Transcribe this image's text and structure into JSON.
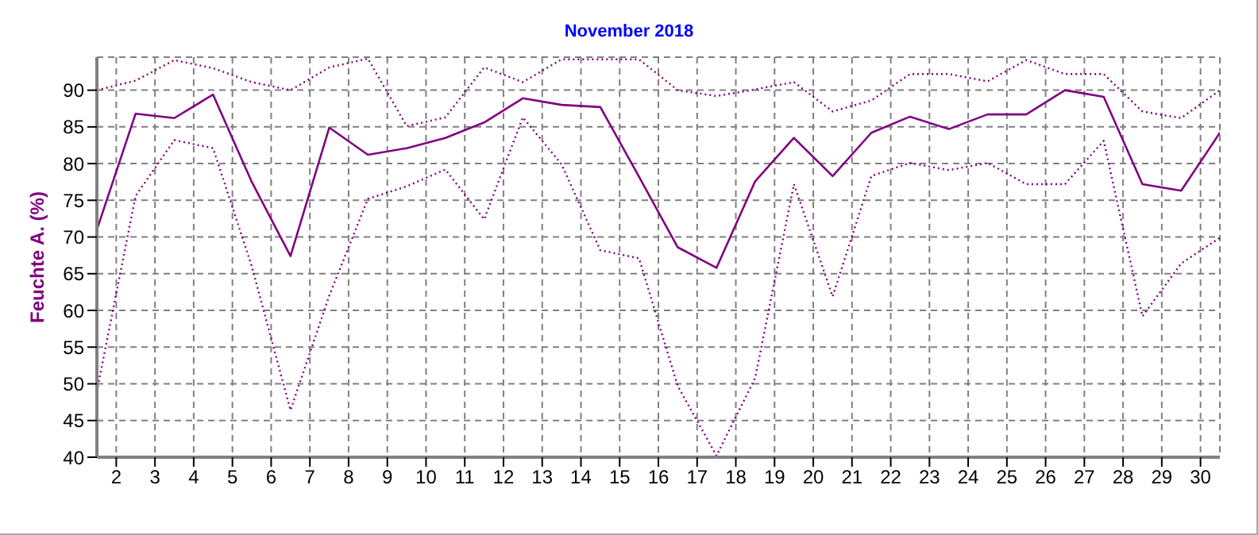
{
  "chart_data": {
    "type": "line",
    "title": "November 2018",
    "ylabel": "Feuchte A. (%)",
    "x": [
      1.5,
      2.5,
      3.5,
      4.5,
      5.5,
      6.5,
      7.5,
      8.5,
      9.5,
      10.5,
      11.5,
      12.5,
      13.5,
      14.5,
      15.5,
      16.5,
      17.5,
      18.5,
      19.5,
      20.5,
      21.5,
      22.5,
      23.5,
      24.5,
      25.5,
      26.5,
      27.5,
      28.5,
      29.5,
      30.5
    ],
    "series": [
      {
        "color": "#800080",
        "line_style": "solid",
        "values": [
          71,
          86.8,
          86.2,
          89.4,
          77.5,
          67.4,
          84.9,
          81.2,
          82.1,
          83.5,
          85.6,
          88.9,
          88,
          87.7,
          78.2,
          68.6,
          65.8,
          77.6,
          83.5,
          78.3,
          84.2,
          86.4,
          84.7,
          86.7,
          86.7,
          90,
          89.1,
          77.2,
          76.3,
          84.2
        ]
      },
      {
        "color": "#800080",
        "line_style": "dotted",
        "values": [
          90,
          91.3,
          94.1,
          93,
          91.1,
          90,
          93.1,
          94.3,
          85.1,
          86.3,
          93.1,
          91.1,
          94.2,
          94.2,
          94.2,
          90,
          89.2,
          90.1,
          91.1,
          87.1,
          88.6,
          92.2,
          92.2,
          91.2,
          94.1,
          92.2,
          92.2,
          87.1,
          86.2,
          90
        ]
      },
      {
        "color": "#800080",
        "line_style": "dotted",
        "values": [
          49,
          75.6,
          83.2,
          82.1,
          66,
          46.4,
          62,
          75.2,
          76.9,
          79.2,
          72.4,
          86.3,
          79.9,
          68.2,
          67.1,
          49.7,
          40.2,
          50.8,
          77.2,
          61.9,
          78.3,
          80.1,
          79.1,
          80.1,
          77.2,
          77.2,
          83.1,
          59.2,
          66.4,
          69.9
        ]
      }
    ],
    "xlim": [
      1.5,
      30.5
    ],
    "xticks": [
      2,
      3,
      4,
      5,
      6,
      7,
      8,
      9,
      10,
      11,
      12,
      13,
      14,
      15,
      16,
      17,
      18,
      19,
      20,
      21,
      22,
      23,
      24,
      25,
      26,
      27,
      28,
      29,
      30
    ],
    "ylim": [
      40,
      94.5
    ],
    "yticks": [
      40,
      45,
      50,
      55,
      60,
      65,
      70,
      75,
      80,
      85,
      90
    ],
    "grid": true,
    "legend": false,
    "marker": "none"
  }
}
